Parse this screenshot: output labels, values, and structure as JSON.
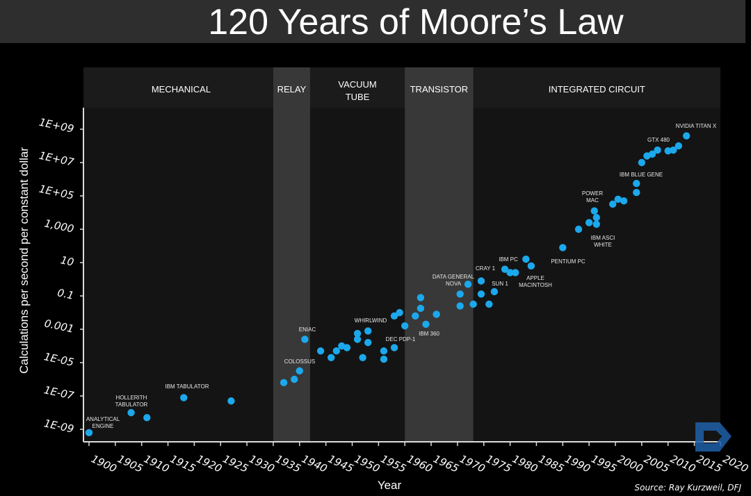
{
  "title": "120 Years of Moore’s Law",
  "source": "Source: Ray Kurzweil, DFJ",
  "colors": {
    "point": "#1ca8ec",
    "band_light": "#383838",
    "plot_bg": "#141414",
    "logo": "#1f5fa8"
  },
  "chart_data": {
    "type": "scatter",
    "title": "120 Years of Moore’s Law",
    "xlabel": "Year",
    "ylabel": "Calculations per second per constant dollar",
    "x_scale": "linear",
    "y_scale": "log",
    "xlim": [
      1900,
      2020
    ],
    "ylim": [
      1e-09,
      1000000000.0
    ],
    "x_ticks": [
      "1900",
      "1905",
      "1910",
      "1915",
      "1920",
      "1925",
      "1930",
      "1935",
      "1940",
      "1945",
      "1950",
      "1955",
      "1960",
      "1965",
      "1970",
      "1975",
      "1980",
      "1985",
      "1990",
      "1995",
      "2000",
      "2005",
      "2010",
      "2015",
      "2020"
    ],
    "y_ticks": [
      {
        "label": "1E-09",
        "value": 1e-09
      },
      {
        "label": "1E-07",
        "value": 1e-07
      },
      {
        "label": "1E-05",
        "value": 1e-05
      },
      {
        "label": "0.001",
        "value": 0.001
      },
      {
        "label": "0.1",
        "value": 0.1
      },
      {
        "label": "10",
        "value": 10
      },
      {
        "label": "1,000",
        "value": 1000
      },
      {
        "label": "1E+05",
        "value": 100000.0
      },
      {
        "label": "1E+07",
        "value": 10000000.0
      },
      {
        "label": "1E+09",
        "value": 1000000000.0
      }
    ],
    "eras": [
      {
        "label": "MECHANICAL",
        "from": 1900,
        "to": 1935,
        "shaded": false
      },
      {
        "label": "RELAY",
        "from": 1935,
        "to": 1942,
        "shaded": true
      },
      {
        "label": "VACUUM TUBE",
        "from": 1942,
        "to": 1960,
        "shaded": false
      },
      {
        "label": "TRANSISTOR",
        "from": 1960,
        "to": 1973,
        "shaded": true
      },
      {
        "label": "INTEGRATED CIRCUIT",
        "from": 1973,
        "to": 2020,
        "shaded": false
      }
    ],
    "points": [
      [
        1900,
        6.3e-10
      ],
      [
        1908,
        1e-08
      ],
      [
        1911,
        5e-09
      ],
      [
        1918,
        7.9e-08
      ],
      [
        1927,
        5e-08
      ],
      [
        1937,
        6.3e-07
      ],
      [
        1939,
        1e-06
      ],
      [
        1940,
        3.2e-06
      ],
      [
        1941,
        0.00025
      ],
      [
        1944,
        5e-05
      ],
      [
        1946,
        2e-05
      ],
      [
        1947,
        5e-05
      ],
      [
        1948,
        0.0001
      ],
      [
        1949,
        7.9e-05
      ],
      [
        1951,
        0.00025
      ],
      [
        1951,
        0.00056
      ],
      [
        1952,
        2e-05
      ],
      [
        1953,
        0.00079
      ],
      [
        1953,
        0.00016
      ],
      [
        1956,
        5e-05
      ],
      [
        1956,
        1.6e-05
      ],
      [
        1958,
        7.9e-05
      ],
      [
        1958,
        0.0063
      ],
      [
        1959,
        0.01
      ],
      [
        1960,
        0.0016
      ],
      [
        1962,
        0.0063
      ],
      [
        1963,
        0.079
      ],
      [
        1963,
        0.018
      ],
      [
        1964,
        0.002
      ],
      [
        1966,
        0.0079
      ],
      [
        1970.5,
        0.13
      ],
      [
        1970.5,
        0.025
      ],
      [
        1972,
        0.5
      ],
      [
        1973,
        0.032
      ],
      [
        1974.5,
        0.79
      ],
      [
        1974.5,
        0.13
      ],
      [
        1976,
        0.032
      ],
      [
        1977,
        0.18
      ],
      [
        1979,
        4
      ],
      [
        1980,
        2.5
      ],
      [
        1981,
        2.5
      ],
      [
        1983,
        16
      ],
      [
        1984,
        6.3
      ],
      [
        1990,
        79
      ],
      [
        1993,
        1000
      ],
      [
        1995,
        2500
      ],
      [
        1996,
        12600
      ],
      [
        1996.4,
        5000
      ],
      [
        1996.4,
        2000
      ],
      [
        1999.5,
        32000
      ],
      [
        2000.5,
        63000
      ],
      [
        2001.6,
        50000
      ],
      [
        2004,
        560000.0
      ],
      [
        2004,
        160000.0
      ],
      [
        2005,
        10000000.0
      ],
      [
        2006,
        25000000.0
      ],
      [
        2007,
        32000000.0
      ],
      [
        2008,
        56000000.0
      ],
      [
        2010,
        50000000.0
      ],
      [
        2011,
        56000000.0
      ],
      [
        2012,
        100000000.0
      ],
      [
        2013.5,
        400000000.0
      ]
    ],
    "annotations": [
      {
        "lines": [
          "ANALYTICAL",
          "ENGINE"
        ]
      },
      {
        "lines": [
          "HOLLERITH",
          "TABULATOR"
        ]
      },
      {
        "lines": [
          "IBM TABULATOR"
        ]
      },
      {
        "lines": [
          "COLOSSUS"
        ]
      },
      {
        "lines": [
          "ENIAC"
        ]
      },
      {
        "lines": [
          "WHIRLWIND"
        ]
      },
      {
        "lines": [
          "DEC PDP-1"
        ]
      },
      {
        "lines": [
          "IBM 360"
        ]
      },
      {
        "lines": [
          "DATA GENERAL",
          "NOVA"
        ]
      },
      {
        "lines": [
          "CRAY 1"
        ]
      },
      {
        "lines": [
          "SUN 1"
        ]
      },
      {
        "lines": [
          "IBM PC"
        ]
      },
      {
        "lines": [
          "APPLE",
          "MACINTOSH"
        ]
      },
      {
        "lines": [
          "PENTIUM PC"
        ]
      },
      {
        "lines": [
          "POWER",
          "MAC"
        ]
      },
      {
        "lines": [
          "IBM ASCI",
          "WHITE"
        ]
      },
      {
        "lines": [
          "IBM BLUE GENE"
        ]
      },
      {
        "lines": [
          "GTX 480"
        ]
      },
      {
        "lines": [
          "NVIDIA TITAN X"
        ]
      }
    ]
  }
}
